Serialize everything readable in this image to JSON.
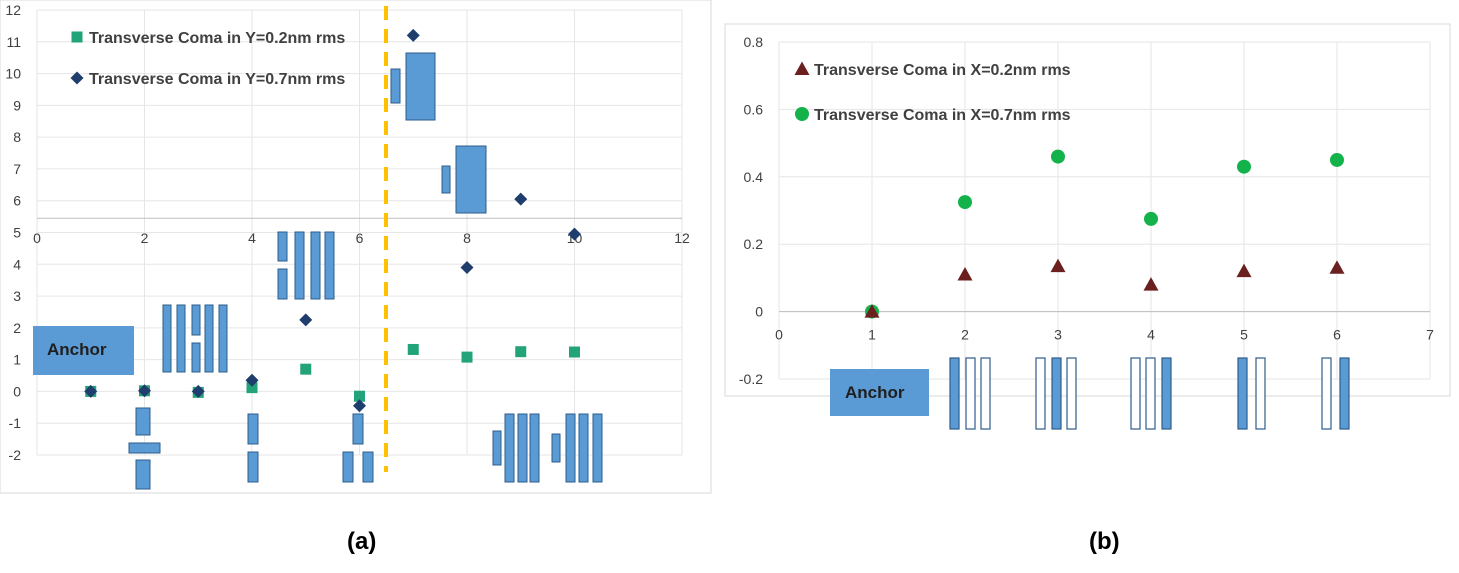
{
  "chart_data": [
    {
      "panel": "(a)",
      "type": "scatter",
      "xlim": [
        0,
        12
      ],
      "ylim": [
        -2,
        12
      ],
      "xticks": [
        0,
        2,
        4,
        6,
        8,
        10,
        12
      ],
      "yticks": [
        -2,
        -1,
        0,
        1,
        2,
        3,
        4,
        5,
        6,
        7,
        8,
        9,
        10,
        11,
        12
      ],
      "grid": true,
      "legend_position": "top-left",
      "annotation": "Anchor",
      "divider_x": 6.5,
      "series": [
        {
          "name": "Transverse Coma in Y=0.2nm rms",
          "marker": "square",
          "color": "#22A37A",
          "x": [
            1,
            2,
            3,
            4,
            5,
            6,
            7,
            8,
            9,
            10
          ],
          "y": [
            0.0,
            0.02,
            -0.03,
            0.12,
            0.7,
            -0.15,
            1.32,
            1.08,
            1.25,
            1.24
          ]
        },
        {
          "name": "Transverse Coma in Y=0.7nm rms",
          "marker": "diamond",
          "color": "#1F3E6E",
          "x": [
            1,
            2,
            3,
            4,
            5,
            6,
            7,
            8,
            9,
            10
          ],
          "y": [
            0.0,
            0.02,
            0.0,
            0.35,
            2.25,
            -0.45,
            11.2,
            3.9,
            6.05,
            4.95
          ]
        }
      ]
    },
    {
      "panel": "(b)",
      "type": "scatter",
      "xlim": [
        0,
        7
      ],
      "ylim": [
        -0.2,
        0.8
      ],
      "xticks": [
        0,
        1,
        2,
        3,
        4,
        5,
        6,
        7
      ],
      "yticks": [
        -0.2,
        0,
        0.2,
        0.4,
        0.6,
        0.8
      ],
      "ytick_labels": [
        "-0.2",
        "0",
        "0.2",
        "0.4",
        "0.6",
        "0.8"
      ],
      "grid": true,
      "legend_position": "top-left",
      "annotation": "Anchor",
      "series": [
        {
          "name": "Transverse Coma in X=0.2nm rms",
          "marker": "triangle",
          "color": "#6B1F1F",
          "x": [
            1,
            2,
            3,
            4,
            5,
            6
          ],
          "y": [
            0.0,
            0.11,
            0.135,
            0.08,
            0.12,
            0.13
          ]
        },
        {
          "name": "Transverse Coma in X=0.7nm rms",
          "marker": "circle",
          "color": "#14B24B",
          "x": [
            1,
            2,
            3,
            4,
            5,
            6
          ],
          "y": [
            0.0,
            0.325,
            0.46,
            0.275,
            0.43,
            0.45
          ]
        }
      ]
    }
  ],
  "labels": {
    "panel_a": "(a)",
    "panel_b": "(b)"
  }
}
